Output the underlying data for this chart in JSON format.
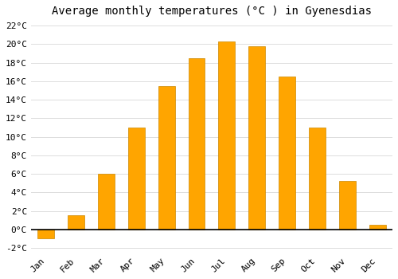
{
  "title": "Average monthly temperatures (°C ) in Gyenesdias",
  "months": [
    "Jan",
    "Feb",
    "Mar",
    "Apr",
    "May",
    "Jun",
    "Jul",
    "Aug",
    "Sep",
    "Oct",
    "Nov",
    "Dec"
  ],
  "temperatures": [
    -1.0,
    1.5,
    6.0,
    11.0,
    15.5,
    18.5,
    20.3,
    19.8,
    16.5,
    11.0,
    5.2,
    0.5
  ],
  "bar_color": "#FFA500",
  "bar_edge_color": "#CC8800",
  "bg_color": "#FFFFFF",
  "ylim": [
    -2.5,
    22.5
  ],
  "yticks": [
    0,
    2,
    4,
    6,
    8,
    10,
    12,
    14,
    16,
    18,
    20,
    22
  ],
  "ytick_min_label": "-2°C",
  "ytick_min_val": -2,
  "grid_color": "#DDDDDD",
  "title_fontsize": 10,
  "tick_fontsize": 8,
  "bar_width": 0.55
}
